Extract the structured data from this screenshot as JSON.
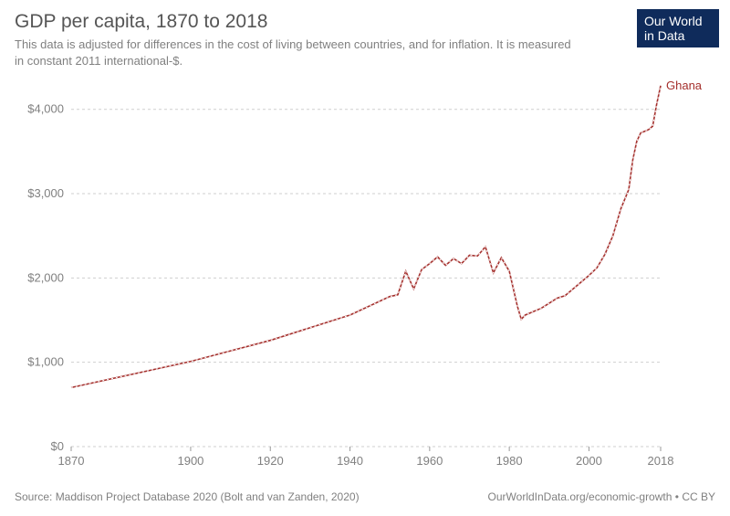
{
  "header": {
    "title": "GDP per capita, 1870 to 2018",
    "subtitle": "This data is adjusted for differences in the cost of living between countries, and for inflation. It is measured in constant 2011 international-$."
  },
  "logo": {
    "line1": "Our World",
    "line2": "in Data"
  },
  "footer": {
    "source": "Source: Maddison Project Database 2020 (Bolt and van Zanden, 2020)",
    "link_text": "OurWorldInData.org/economic-growth",
    "license": "CC BY"
  },
  "chart": {
    "type": "line",
    "background_color": "#ffffff",
    "grid_color": "#cfcfcf",
    "axis_color": "#999999",
    "tick_label_fontsize": 13,
    "tick_label_color": "#808080",
    "x": {
      "lim": [
        1870,
        2018
      ],
      "ticks": [
        1870,
        1900,
        1920,
        1940,
        1960,
        1980,
        2000,
        2018
      ]
    },
    "y": {
      "lim": [
        0,
        4300
      ],
      "ticks": [
        0,
        1000,
        2000,
        3000,
        4000
      ],
      "tick_labels": [
        "$0",
        "$1,000",
        "$2,000",
        "$3,000",
        "$4,000"
      ]
    },
    "series": [
      {
        "name": "Ghana",
        "color": "#a42f2c",
        "line_width": 1.6,
        "label_fontsize": 13,
        "points": [
          [
            1870,
            700
          ],
          [
            1900,
            1010
          ],
          [
            1920,
            1260
          ],
          [
            1940,
            1560
          ],
          [
            1950,
            1780
          ],
          [
            1952,
            1800
          ],
          [
            1954,
            2080
          ],
          [
            1956,
            1870
          ],
          [
            1958,
            2100
          ],
          [
            1960,
            2170
          ],
          [
            1962,
            2250
          ],
          [
            1964,
            2150
          ],
          [
            1966,
            2230
          ],
          [
            1968,
            2170
          ],
          [
            1970,
            2270
          ],
          [
            1972,
            2260
          ],
          [
            1974,
            2370
          ],
          [
            1976,
            2060
          ],
          [
            1978,
            2240
          ],
          [
            1980,
            2080
          ],
          [
            1982,
            1670
          ],
          [
            1983,
            1510
          ],
          [
            1984,
            1560
          ],
          [
            1986,
            1600
          ],
          [
            1988,
            1640
          ],
          [
            1990,
            1700
          ],
          [
            1992,
            1760
          ],
          [
            1994,
            1790
          ],
          [
            1996,
            1870
          ],
          [
            1998,
            1950
          ],
          [
            2000,
            2030
          ],
          [
            2002,
            2120
          ],
          [
            2004,
            2280
          ],
          [
            2006,
            2500
          ],
          [
            2008,
            2820
          ],
          [
            2010,
            3050
          ],
          [
            2011,
            3400
          ],
          [
            2012,
            3620
          ],
          [
            2013,
            3720
          ],
          [
            2014,
            3740
          ],
          [
            2015,
            3760
          ],
          [
            2016,
            3800
          ],
          [
            2017,
            4060
          ],
          [
            2018,
            4280
          ]
        ]
      }
    ]
  }
}
